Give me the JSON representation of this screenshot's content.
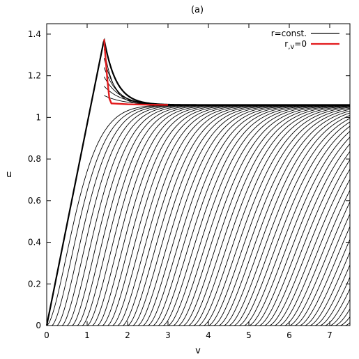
{
  "chart_data": {
    "type": "line",
    "title": "(a)",
    "xlabel": "v",
    "ylabel": "u",
    "xlim": [
      0,
      7.5
    ],
    "ylim": [
      0,
      1.45
    ],
    "xticks": [
      "0",
      "1",
      "2",
      "3",
      "4",
      "5",
      "6",
      "7"
    ],
    "yticks": [
      "0",
      "0.2",
      "0.4",
      "0.6",
      "0.8",
      "1",
      "1.2",
      "1.4"
    ],
    "grid": false,
    "legend_position": "top-right",
    "legend": [
      {
        "label": "r=const.",
        "color": "#000000"
      },
      {
        "label": "r,v=0",
        "color": "#e31a1c"
      }
    ],
    "series": [
      {
        "name": "r=const.",
        "color": "#000000",
        "description": "family of contour curves",
        "apex": {
          "x": 1.42,
          "y": 1.375
        },
        "plateau_y": 1.06,
        "curve_count": 60
      },
      {
        "name": "r,v=0",
        "color": "#e31a1c",
        "x": [
          1.42,
          1.45,
          1.5,
          1.55,
          1.6,
          2.0,
          2.5,
          3.0
        ],
        "y": [
          1.375,
          1.3,
          1.18,
          1.09,
          1.067,
          1.063,
          1.061,
          1.06
        ]
      }
    ]
  }
}
